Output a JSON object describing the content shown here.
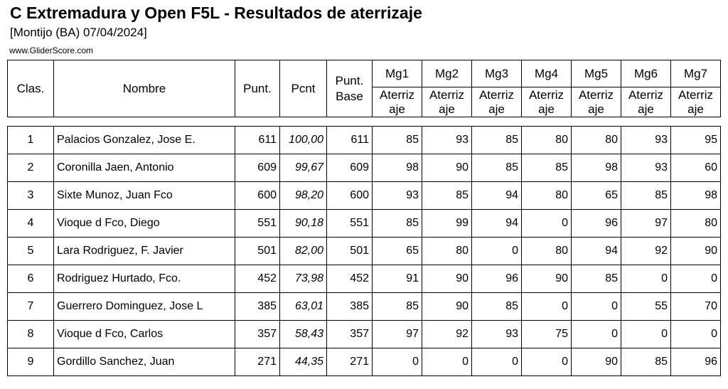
{
  "header": {
    "title": "C Extremadura y Open F5L - Resultados de aterrizaje",
    "subtitle": "[Montijo (BA) 07/04/2024]",
    "site": "www.GliderScore.com"
  },
  "columns": {
    "clas": "Clas.",
    "nombre": "Nombre",
    "punt": "Punt.",
    "pcnt": "Pcnt",
    "punt_base": "Punt. Base",
    "rounds": [
      "Mg1",
      "Mg2",
      "Mg3",
      "Mg4",
      "Mg5",
      "Mg6",
      "Mg7"
    ],
    "round_sub": "Aterriz aje"
  },
  "rows": [
    {
      "clas": "1",
      "nombre": "Palacios Gonzalez, Jose E.",
      "punt": "611",
      "pcnt": "100,00",
      "base": "611",
      "mg": [
        "85",
        "93",
        "85",
        "80",
        "80",
        "93",
        "95"
      ]
    },
    {
      "clas": "2",
      "nombre": "Coronilla Jaen, Antonio",
      "punt": "609",
      "pcnt": "99,67",
      "base": "609",
      "mg": [
        "98",
        "90",
        "85",
        "85",
        "98",
        "93",
        "60"
      ]
    },
    {
      "clas": "3",
      "nombre": "Sixte Munoz, Juan Fco",
      "punt": "600",
      "pcnt": "98,20",
      "base": "600",
      "mg": [
        "93",
        "85",
        "94",
        "80",
        "65",
        "85",
        "98"
      ]
    },
    {
      "clas": "4",
      "nombre": "Vioque d Fco, Diego",
      "punt": "551",
      "pcnt": "90,18",
      "base": "551",
      "mg": [
        "85",
        "99",
        "94",
        "0",
        "96",
        "97",
        "80"
      ]
    },
    {
      "clas": "5",
      "nombre": "Lara Rodriguez, F. Javier",
      "punt": "501",
      "pcnt": "82,00",
      "base": "501",
      "mg": [
        "65",
        "80",
        "0",
        "80",
        "94",
        "92",
        "90"
      ]
    },
    {
      "clas": "6",
      "nombre": "Rodriguez Hurtado, Fco.",
      "punt": "452",
      "pcnt": "73,98",
      "base": "452",
      "mg": [
        "91",
        "90",
        "96",
        "90",
        "85",
        "0",
        "0"
      ]
    },
    {
      "clas": "7",
      "nombre": "Guerrero Dominguez, Jose L",
      "punt": "385",
      "pcnt": "63,01",
      "base": "385",
      "mg": [
        "85",
        "90",
        "85",
        "0",
        "0",
        "55",
        "70"
      ]
    },
    {
      "clas": "8",
      "nombre": "Vioque d Fco, Carlos",
      "punt": "357",
      "pcnt": "58,43",
      "base": "357",
      "mg": [
        "97",
        "92",
        "93",
        "75",
        "0",
        "0",
        "0"
      ]
    },
    {
      "clas": "9",
      "nombre": "Gordillo Sanchez, Juan",
      "punt": "271",
      "pcnt": "44,35",
      "base": "271",
      "mg": [
        "0",
        "0",
        "0",
        "0",
        "90",
        "85",
        "96"
      ]
    }
  ]
}
